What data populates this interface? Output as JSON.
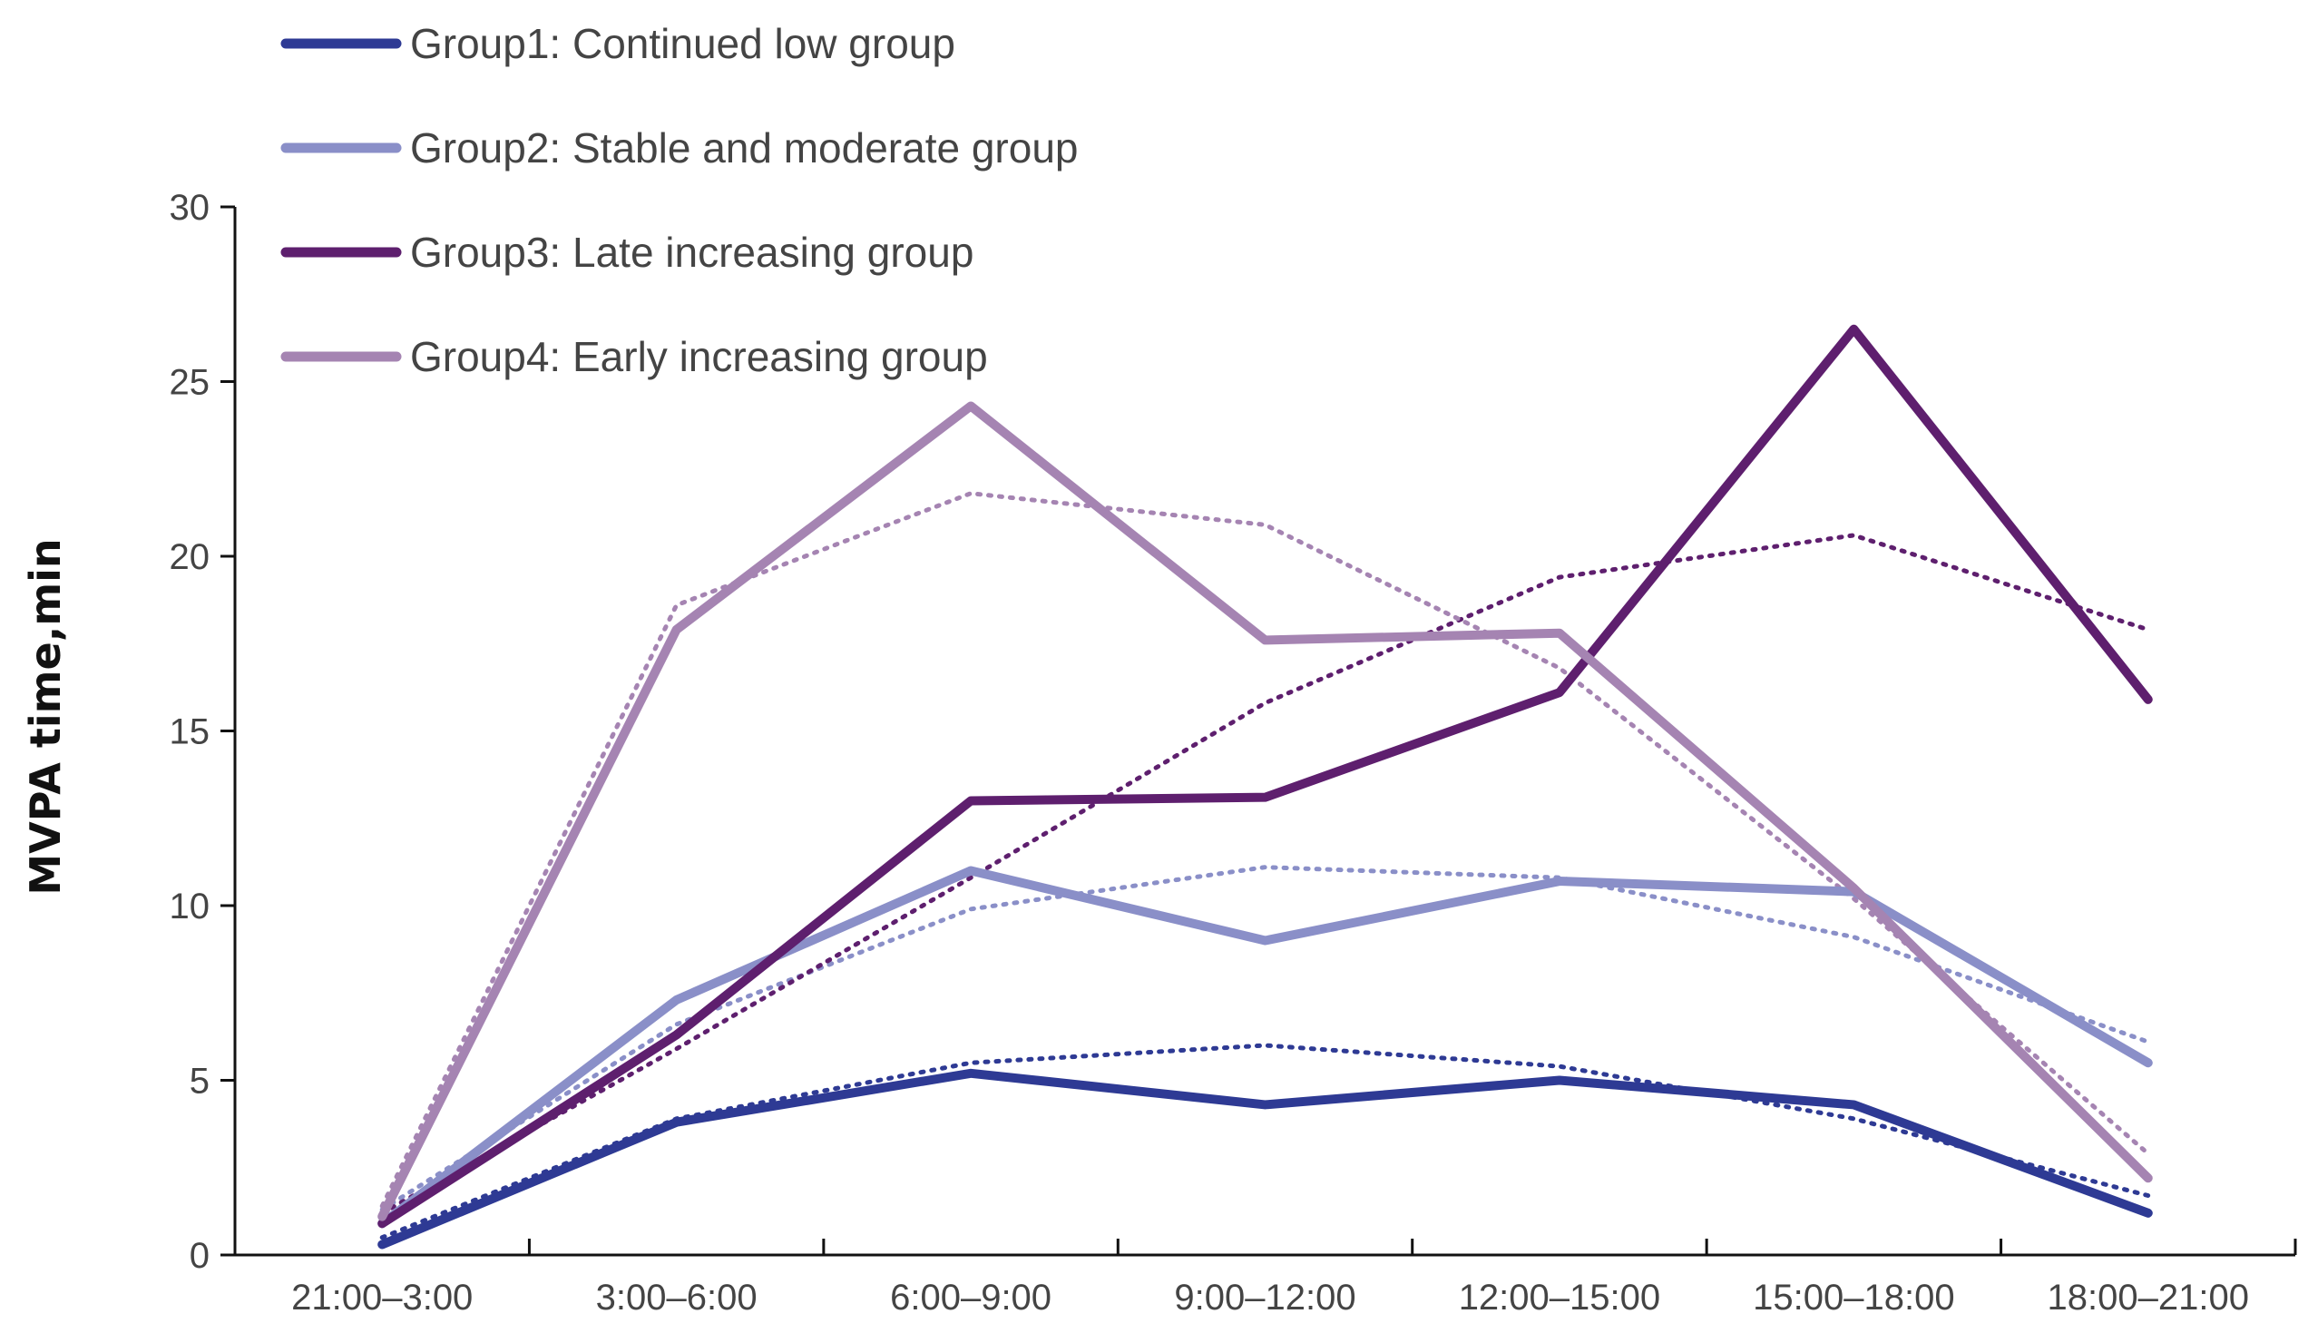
{
  "chart_data": {
    "type": "line",
    "title": "",
    "xlabel": "",
    "ylabel": "MVPA time,min",
    "categories": [
      "21:00–3:00",
      "3:00–6:00",
      "6:00–9:00",
      "9:00–12:00",
      "12:00–15:00",
      "15:00–18:00",
      "18:00–21:00"
    ],
    "ylim": [
      0,
      30
    ],
    "yticks": [
      0,
      5,
      10,
      15,
      20,
      25,
      30
    ],
    "grid": false,
    "legend": "top-left",
    "series": [
      {
        "name": "Group1: Continued low group",
        "color": "#2e3a94",
        "values": [
          0.3,
          3.8,
          5.2,
          4.3,
          5.0,
          4.3,
          1.2
        ],
        "trend": [
          0.5,
          3.9,
          5.5,
          6.0,
          5.4,
          3.9,
          1.7
        ]
      },
      {
        "name": "Group2: Stable and moderate group",
        "color": "#8a8fc8",
        "values": [
          0.9,
          7.3,
          11.0,
          9.0,
          10.7,
          10.4,
          5.5
        ],
        "trend": [
          1.3,
          6.6,
          9.9,
          11.1,
          10.8,
          9.1,
          6.1
        ]
      },
      {
        "name": "Group3: Late increasing group",
        "color": "#5e1f6e",
        "values": [
          0.9,
          6.3,
          13.0,
          13.1,
          16.1,
          26.5,
          15.9
        ],
        "trend": [
          1.2,
          5.9,
          10.8,
          15.8,
          19.4,
          20.6,
          17.9
        ]
      },
      {
        "name": "Group4: Early increasing group",
        "color": "#a584b2",
        "values": [
          1.1,
          17.9,
          24.3,
          17.6,
          17.8,
          10.5,
          2.2
        ],
        "trend": [
          1.4,
          18.6,
          21.8,
          20.9,
          16.8,
          10.2,
          2.9
        ]
      }
    ]
  }
}
